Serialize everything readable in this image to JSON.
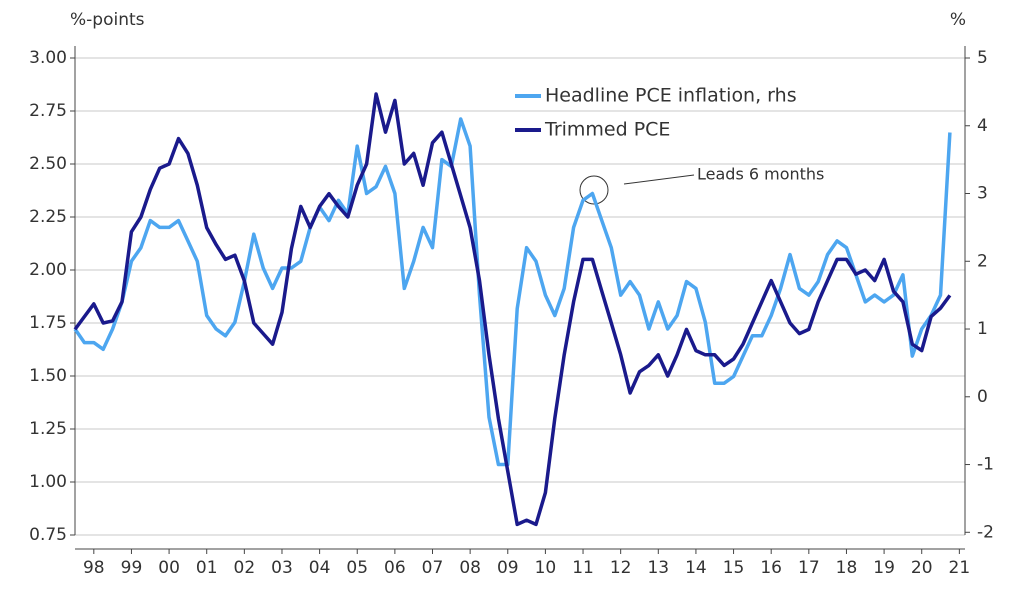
{
  "chart_data": {
    "type": "line",
    "y_label": "%-points",
    "y2_label": "%",
    "annotation": "Leads 6 months",
    "legend": "top-center",
    "grid": true,
    "x": [
      1998,
      1998.25,
      1998.5,
      1998.75,
      1999,
      1999.25,
      1999.5,
      1999.75,
      2000,
      2000.25,
      2000.5,
      2000.75,
      2001,
      2001.25,
      2001.5,
      2001.75,
      2002,
      2002.25,
      2002.5,
      2002.75,
      2003,
      2003.25,
      2003.5,
      2003.75,
      2004,
      2004.25,
      2004.5,
      2004.75,
      2005,
      2005.25,
      2005.5,
      2005.75,
      2006,
      2006.25,
      2006.5,
      2006.75,
      2007,
      2007.25,
      2007.5,
      2007.75,
      2008,
      2008.25,
      2008.5,
      2008.75,
      2009,
      2009.25,
      2009.5,
      2009.75,
      2010,
      2010.25,
      2010.5,
      2010.75,
      2011,
      2011.25,
      2011.5,
      2011.75,
      2012,
      2012.25,
      2012.5,
      2012.75,
      2013,
      2013.25,
      2013.5,
      2013.75,
      2014,
      2014.25,
      2014.5,
      2014.75,
      2015,
      2015.25,
      2015.5,
      2015.75,
      2016,
      2016.25,
      2016.5,
      2016.75,
      2017,
      2017.25,
      2017.5,
      2017.75,
      2018,
      2018.25,
      2018.5,
      2018.75,
      2019,
      2019.25,
      2019.5,
      2019.75,
      2020,
      2020.25,
      2020.5,
      2020.75,
      2021,
      2021.25
    ],
    "xlim": [
      1998,
      2021.65
    ],
    "xticks": [
      {
        "value": 1998.5,
        "label": "98"
      },
      {
        "value": 1999.5,
        "label": "99"
      },
      {
        "value": 2000.5,
        "label": "00"
      },
      {
        "value": 2001.5,
        "label": "01"
      },
      {
        "value": 2002.5,
        "label": "02"
      },
      {
        "value": 2003.5,
        "label": "03"
      },
      {
        "value": 2004.5,
        "label": "04"
      },
      {
        "value": 2005.5,
        "label": "05"
      },
      {
        "value": 2006.5,
        "label": "06"
      },
      {
        "value": 2007.5,
        "label": "07"
      },
      {
        "value": 2008.5,
        "label": "08"
      },
      {
        "value": 2009.5,
        "label": "09"
      },
      {
        "value": 2010.5,
        "label": "10"
      },
      {
        "value": 2011.5,
        "label": "11"
      },
      {
        "value": 2012.5,
        "label": "12"
      },
      {
        "value": 2013.5,
        "label": "13"
      },
      {
        "value": 2014.5,
        "label": "14"
      },
      {
        "value": 2015.5,
        "label": "15"
      },
      {
        "value": 2016.5,
        "label": "16"
      },
      {
        "value": 2017.5,
        "label": "17"
      },
      {
        "value": 2018.5,
        "label": "18"
      },
      {
        "value": 2019.5,
        "label": "19"
      },
      {
        "value": 2020.5,
        "label": "20"
      },
      {
        "value": 2021.5,
        "label": "21"
      }
    ],
    "ylim": [
      0.75,
      3.0
    ],
    "yticks": [
      {
        "value": 0.75,
        "label": "0.75"
      },
      {
        "value": 1.0,
        "label": "1.00"
      },
      {
        "value": 1.25,
        "label": "1.25"
      },
      {
        "value": 1.5,
        "label": "1.50"
      },
      {
        "value": 1.75,
        "label": "1.75"
      },
      {
        "value": 2.0,
        "label": "2.00"
      },
      {
        "value": 2.25,
        "label": "2.25"
      },
      {
        "value": 2.5,
        "label": "2.50"
      },
      {
        "value": 2.75,
        "label": "2.75"
      },
      {
        "value": 3.0,
        "label": "3.00"
      }
    ],
    "y2lim": [
      -2.04,
      5
    ],
    "y2ticks": [
      -2,
      -1,
      0,
      1,
      2,
      3,
      4,
      5
    ],
    "series": [
      {
        "name": "Headline PCE inflation, rhs",
        "color": "#4da6f0",
        "axis": "y2",
        "values": [
          1.0,
          0.8,
          0.8,
          0.7,
          1.0,
          1.4,
          2.0,
          2.2,
          2.6,
          2.5,
          2.5,
          2.6,
          2.3,
          2.0,
          1.2,
          1.0,
          0.9,
          1.1,
          1.7,
          2.4,
          1.9,
          1.6,
          1.9,
          1.9,
          2.0,
          2.5,
          2.8,
          2.6,
          2.9,
          2.7,
          3.7,
          3.0,
          3.1,
          3.4,
          3.0,
          1.6,
          2.0,
          2.5,
          2.2,
          3.5,
          3.4,
          4.1,
          3.7,
          1.5,
          -0.3,
          -1.0,
          -1.0,
          1.3,
          2.2,
          2.0,
          1.5,
          1.2,
          1.6,
          2.5,
          2.9,
          3.0,
          2.6,
          2.2,
          1.5,
          1.7,
          1.5,
          1.0,
          1.4,
          1.0,
          1.2,
          1.7,
          1.6,
          1.1,
          0.2,
          0.2,
          0.3,
          0.6,
          0.9,
          0.9,
          1.2,
          1.6,
          2.1,
          1.6,
          1.5,
          1.7,
          2.1,
          2.3,
          2.2,
          1.8,
          1.4,
          1.5,
          1.4,
          1.5,
          1.8,
          0.6,
          1.0,
          1.2,
          1.5,
          3.9
        ]
      },
      {
        "name": "Trimmed PCE",
        "color": "#1a1a8c",
        "values": [
          1.72,
          1.78,
          1.84,
          1.75,
          1.76,
          1.85,
          2.18,
          2.25,
          2.38,
          2.48,
          2.5,
          2.62,
          2.55,
          2.4,
          2.2,
          2.12,
          2.05,
          2.07,
          1.95,
          1.75,
          1.7,
          1.65,
          1.8,
          2.1,
          2.3,
          2.2,
          2.3,
          2.36,
          2.3,
          2.25,
          2.4,
          2.5,
          2.83,
          2.65,
          2.8,
          2.5,
          2.55,
          2.4,
          2.6,
          2.65,
          2.5,
          2.35,
          2.2,
          1.95,
          1.6,
          1.3,
          1.05,
          0.8,
          0.82,
          0.8,
          0.95,
          1.3,
          1.6,
          1.85,
          2.05,
          2.05,
          1.9,
          1.75,
          1.6,
          1.42,
          1.52,
          1.55,
          1.6,
          1.5,
          1.6,
          1.72,
          1.62,
          1.6,
          1.6,
          1.55,
          1.58,
          1.65,
          1.75,
          1.85,
          1.95,
          1.85,
          1.75,
          1.7,
          1.72,
          1.85,
          1.95,
          2.05,
          2.05,
          1.98,
          2.0,
          1.95,
          2.05,
          1.9,
          1.85,
          1.65,
          1.62,
          1.78,
          1.82,
          1.88
        ]
      }
    ]
  }
}
